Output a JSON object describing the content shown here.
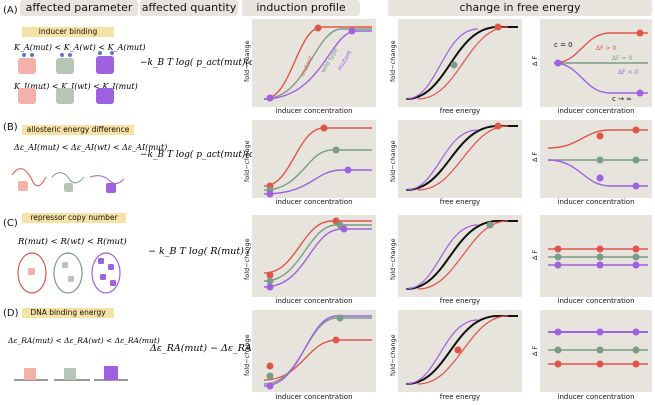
{
  "headers": {
    "affected_parameter": "affected parameter",
    "affected_quantity": "affected quantity",
    "induction_profile": "induction profile",
    "change_in_free_energy": "change in free energy"
  },
  "rows": [
    {
      "label": "(A)",
      "tag": "inducer binding",
      "ineq1": "K_A(mut) < K_A(wt) < K_A(mut)",
      "ineq2": "K_I(mut) < K_I(wt) < K_I(mut)",
      "formula": "−k_B T log( p_act(mut)(c) / p_act(wt)(c) )"
    },
    {
      "label": "(B)",
      "tag": "allosteric energy difference",
      "ineq1": "Δε_AI(mut) < Δε_AI(wt) < Δε_AI(mut)",
      "formula": "−k_B T log( p_act(mut)(c) / p_act(wt)(c) )"
    },
    {
      "label": "(C)",
      "tag": "repressor copy number",
      "ineq1": "R(mut) < R(wt) < R(mut)",
      "formula": "− k_B T log( R(mut) / R(wt) )"
    },
    {
      "label": "(D)",
      "tag": "DNA binding energy",
      "ineq1": "Δε_RA(mut) < Δε_RA(wt) < Δε_RA(mut)",
      "formula": "Δε_RA(mut) − Δε_RA(wt)"
    }
  ],
  "axes": {
    "fold_change": "fold−change",
    "inducer_concentration": "inducer concentration",
    "free_energy": "free energy",
    "delta_f": "Δ F"
  },
  "annotations": {
    "mutant": "mutant",
    "wild_type": "wild type",
    "c_zero": "c = 0",
    "c_inf": "c → ∞",
    "df_pos": "ΔF > 0",
    "df_zero": "ΔF = 0",
    "df_neg": "ΔF < 0"
  },
  "colors": {
    "red": "#e0554a",
    "green": "#7c9c87",
    "purple": "#a061e0",
    "panel": "#e6e4dc",
    "tag": "#f5e2a4"
  }
}
